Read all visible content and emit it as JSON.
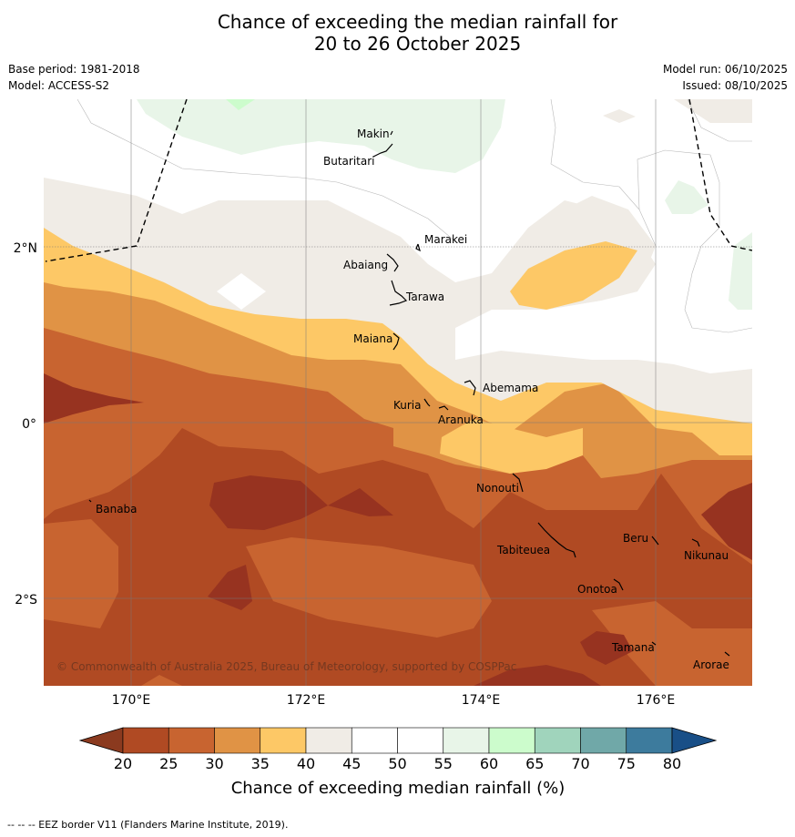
{
  "title_line1": "Chance of exceeding the median rainfall for",
  "title_line2": "20 to 26 October 2025",
  "base_period": "Base period: 1981-2018",
  "model": "Model: ACCESS-S2",
  "model_run": "Model run: 06/10/2025",
  "issued": "Issued: 08/10/2025",
  "copyright": "© Commonwealth of Australia 2025, Bureau of Meteorology, supported by COSPPac",
  "eez_note": "-- -- -- EEZ border V11 (Flanders Marine Institute, 2019).",
  "axes": {
    "x_ticks": [
      "170°E",
      "172°E",
      "174°E",
      "176°E"
    ],
    "y_ticks": [
      "2°N",
      "0°",
      "2°S"
    ]
  },
  "places": [
    {
      "name": "Makin"
    },
    {
      "name": "Butaritari"
    },
    {
      "name": "Marakei"
    },
    {
      "name": "Abaiang"
    },
    {
      "name": "Tarawa"
    },
    {
      "name": "Maiana"
    },
    {
      "name": "Abemama"
    },
    {
      "name": "Kuria"
    },
    {
      "name": "Aranuka"
    },
    {
      "name": "Nonouti"
    },
    {
      "name": "Banaba"
    },
    {
      "name": "Tabiteuea"
    },
    {
      "name": "Beru"
    },
    {
      "name": "Nikunau"
    },
    {
      "name": "Onotoa"
    },
    {
      "name": "Tamana"
    },
    {
      "name": "Arorae"
    }
  ],
  "colorbar": {
    "label": "Chance of exceeding median rainfall (%)",
    "ticks": [
      "20",
      "25",
      "30",
      "35",
      "40",
      "45",
      "50",
      "55",
      "60",
      "65",
      "70",
      "75",
      "80"
    ],
    "under_color": "#8b3a1f",
    "over_color": "#194f87",
    "bin_colors": [
      "#b04a23",
      "#c86430",
      "#e09345",
      "#fdc866",
      "#f0ece6",
      "#ffffff",
      "#ffffff",
      "#e8f5e8",
      "#ccfccc",
      "#a0d4bc",
      "#70a8a8",
      "#3d7b9d"
    ]
  }
}
